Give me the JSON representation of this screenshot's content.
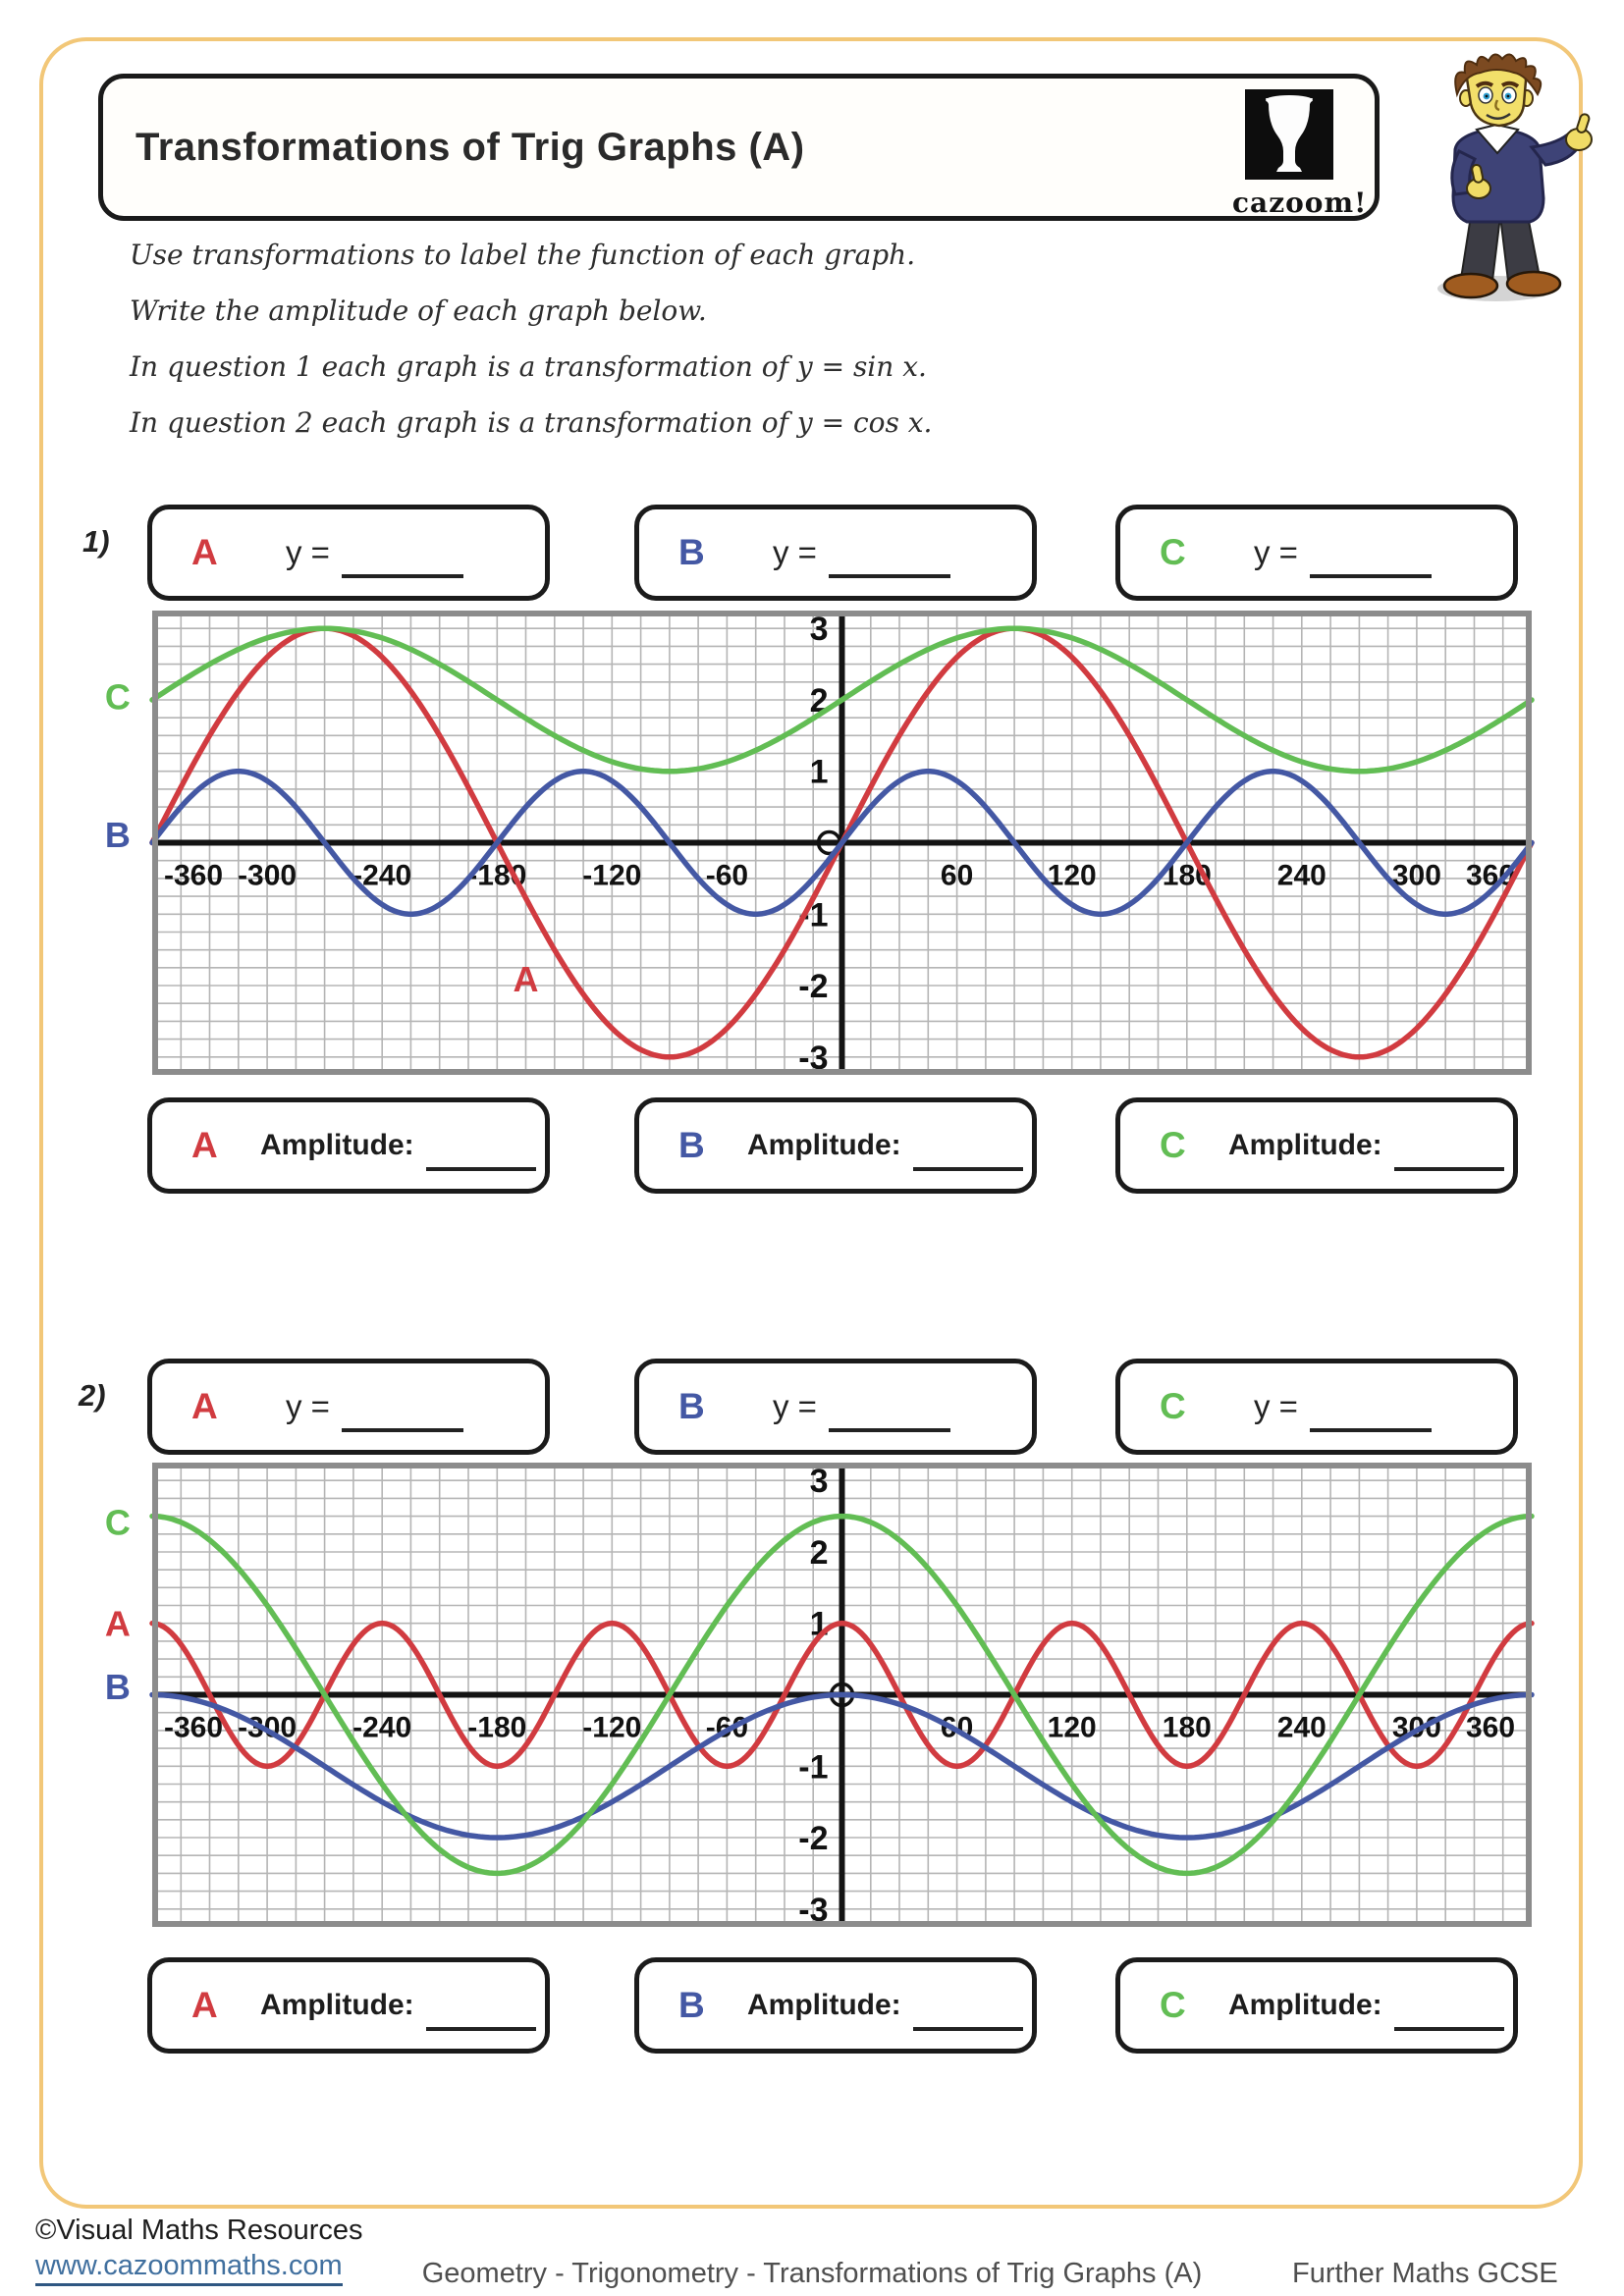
{
  "page": {
    "border_color": "#f2c778"
  },
  "header": {
    "title": "Transformations of Trig Graphs (A)",
    "logo_text": "cazoom!"
  },
  "instructions": {
    "lines": [
      "Use transformations to label the function of each graph.",
      "Write the amplitude of each graph below.",
      "In question 1 each graph is a transformation of y = sin x.",
      "In question 2 each graph is a transformation of y = cos x."
    ]
  },
  "palette": {
    "red": "#d13b40",
    "blue": "#4458a4",
    "green": "#62bd54",
    "grid": "#b5b5b5",
    "frame": "#8c8c8c",
    "axis": "#141414",
    "link": "#41709f"
  },
  "questions": [
    {
      "number": "1)",
      "answers": [
        {
          "letter": "A",
          "label": "y ="
        },
        {
          "letter": "B",
          "label": "y ="
        },
        {
          "letter": "C",
          "label": "y ="
        }
      ],
      "amplitudes": [
        {
          "letter": "A",
          "label": "Amplitude:"
        },
        {
          "letter": "B",
          "label": "Amplitude:"
        },
        {
          "letter": "C",
          "label": "Amplitude:"
        }
      ]
    },
    {
      "number": "2)",
      "answers": [
        {
          "letter": "A",
          "label": "y ="
        },
        {
          "letter": "B",
          "label": "y ="
        },
        {
          "letter": "C",
          "label": "y ="
        }
      ],
      "amplitudes": [
        {
          "letter": "A",
          "label": "Amplitude:"
        },
        {
          "letter": "B",
          "label": "Amplitude:"
        },
        {
          "letter": "C",
          "label": "Amplitude:"
        }
      ]
    }
  ],
  "chart_data": [
    {
      "type": "line",
      "question": 1,
      "base_function": "y = sin x",
      "x_range": [
        -360,
        360
      ],
      "y_range": [
        -3.25,
        3.25
      ],
      "grid": {
        "x_minor_step": 15,
        "y_minor_step": 0.25,
        "on": true
      },
      "x_ticks_labeled": [
        -360,
        -300,
        -240,
        -180,
        -120,
        -60,
        60,
        120,
        180,
        240,
        300,
        360
      ],
      "y_ticks_labeled": [
        3,
        2,
        1,
        -1,
        -2,
        -3
      ],
      "origin_marker_dx": -13,
      "series": [
        {
          "name": "A",
          "color": "#d13b40",
          "function": "y = 3 sin x",
          "amplitude": 3,
          "period": 360,
          "params": {
            "fn": "sin",
            "a": 3,
            "b": 1,
            "c": 0
          },
          "key_points": [
            [
              -360,
              0
            ],
            [
              -270,
              3
            ],
            [
              -180,
              0
            ],
            [
              -90,
              -3
            ],
            [
              0,
              0
            ],
            [
              90,
              3
            ],
            [
              180,
              0
            ],
            [
              270,
              -3
            ],
            [
              360,
              0
            ]
          ]
        },
        {
          "name": "B",
          "color": "#4458a4",
          "function": "y = sin 2x",
          "amplitude": 1,
          "period": 180,
          "params": {
            "fn": "sin",
            "a": 1,
            "b": 2,
            "c": 0
          },
          "key_points": [
            [
              -360,
              0
            ],
            [
              -315,
              1
            ],
            [
              -270,
              0
            ],
            [
              -225,
              -1
            ],
            [
              -180,
              0
            ],
            [
              -135,
              1
            ],
            [
              -90,
              0
            ],
            [
              -45,
              -1
            ],
            [
              0,
              0
            ],
            [
              45,
              1
            ],
            [
              90,
              0
            ],
            [
              135,
              -1
            ],
            [
              180,
              0
            ],
            [
              225,
              1
            ],
            [
              270,
              0
            ],
            [
              315,
              -1
            ],
            [
              360,
              0
            ]
          ]
        },
        {
          "name": "C",
          "color": "#62bd54",
          "function": "y = sin x + 2",
          "amplitude": 1,
          "period": 360,
          "params": {
            "fn": "sin",
            "a": 1,
            "b": 1,
            "c": 2
          },
          "key_points": [
            [
              -360,
              2
            ],
            [
              -270,
              3
            ],
            [
              -180,
              2
            ],
            [
              -90,
              1
            ],
            [
              0,
              2
            ],
            [
              90,
              3
            ],
            [
              180,
              2
            ],
            [
              270,
              1
            ],
            [
              360,
              2
            ]
          ]
        }
      ],
      "curve_labels": [
        {
          "text": "C",
          "color": "#62bd54",
          "x": -378,
          "y": 2.05
        },
        {
          "text": "B",
          "color": "#4458a4",
          "x": -378,
          "y": 0.12
        },
        {
          "text": "A",
          "color": "#d13b40",
          "x": -165,
          "y": -1.9
        }
      ]
    },
    {
      "type": "line",
      "question": 2,
      "base_function": "y = cos x",
      "x_range": [
        -360,
        360
      ],
      "y_range": [
        -3.25,
        3.25
      ],
      "grid": {
        "x_minor_step": 15,
        "y_minor_step": 0.25,
        "on": true
      },
      "x_ticks_labeled": [
        -360,
        -300,
        -240,
        -180,
        -120,
        -60,
        60,
        120,
        180,
        240,
        300,
        360
      ],
      "y_ticks_labeled": [
        3,
        2,
        1,
        -1,
        -2,
        -3
      ],
      "origin_marker_dx": 0,
      "series": [
        {
          "name": "A",
          "color": "#d13b40",
          "function": "y = cos 3x",
          "amplitude": 1,
          "period": 120,
          "params": {
            "fn": "cos",
            "a": 1,
            "b": 3,
            "c": 0
          },
          "key_points": [
            [
              -360,
              1
            ],
            [
              -300,
              -1
            ],
            [
              -240,
              1
            ],
            [
              -180,
              -1
            ],
            [
              -120,
              1
            ],
            [
              -60,
              -1
            ],
            [
              0,
              1
            ],
            [
              60,
              -1
            ],
            [
              120,
              1
            ],
            [
              180,
              -1
            ],
            [
              240,
              1
            ],
            [
              300,
              -1
            ],
            [
              360,
              1
            ]
          ]
        },
        {
          "name": "B",
          "color": "#4458a4",
          "function": "y = cos x - 1",
          "amplitude": 1,
          "period": 360,
          "params": {
            "fn": "cos",
            "a": 1,
            "b": 1,
            "c": -1
          },
          "key_points": [
            [
              -360,
              0
            ],
            [
              -270,
              -1
            ],
            [
              -180,
              -2
            ],
            [
              -90,
              -1
            ],
            [
              0,
              0
            ],
            [
              90,
              -1
            ],
            [
              180,
              -2
            ],
            [
              270,
              -1
            ],
            [
              360,
              0
            ]
          ]
        },
        {
          "name": "C",
          "color": "#62bd54",
          "function": "y = 2.5 cos x",
          "amplitude": 2.5,
          "period": 360,
          "params": {
            "fn": "cos",
            "a": 2.5,
            "b": 1,
            "c": 0
          },
          "key_points": [
            [
              -360,
              2.5
            ],
            [
              -270,
              0
            ],
            [
              -180,
              -2.5
            ],
            [
              -90,
              0
            ],
            [
              0,
              2.5
            ],
            [
              90,
              0
            ],
            [
              180,
              -2.5
            ],
            [
              270,
              0
            ],
            [
              360,
              2.5
            ]
          ]
        }
      ],
      "curve_labels": [
        {
          "text": "C",
          "color": "#62bd54",
          "x": -378,
          "y": 2.42
        },
        {
          "text": "A",
          "color": "#d13b40",
          "x": -378,
          "y": 1.0
        },
        {
          "text": "B",
          "color": "#4458a4",
          "x": -378,
          "y": 0.12
        }
      ]
    }
  ],
  "footer": {
    "copyright": "©Visual Maths Resources",
    "url": "www.cazoommaths.com",
    "center": "Geometry - Trigonometry - Transformations of Trig Graphs (A)",
    "right": "Further Maths GCSE"
  }
}
